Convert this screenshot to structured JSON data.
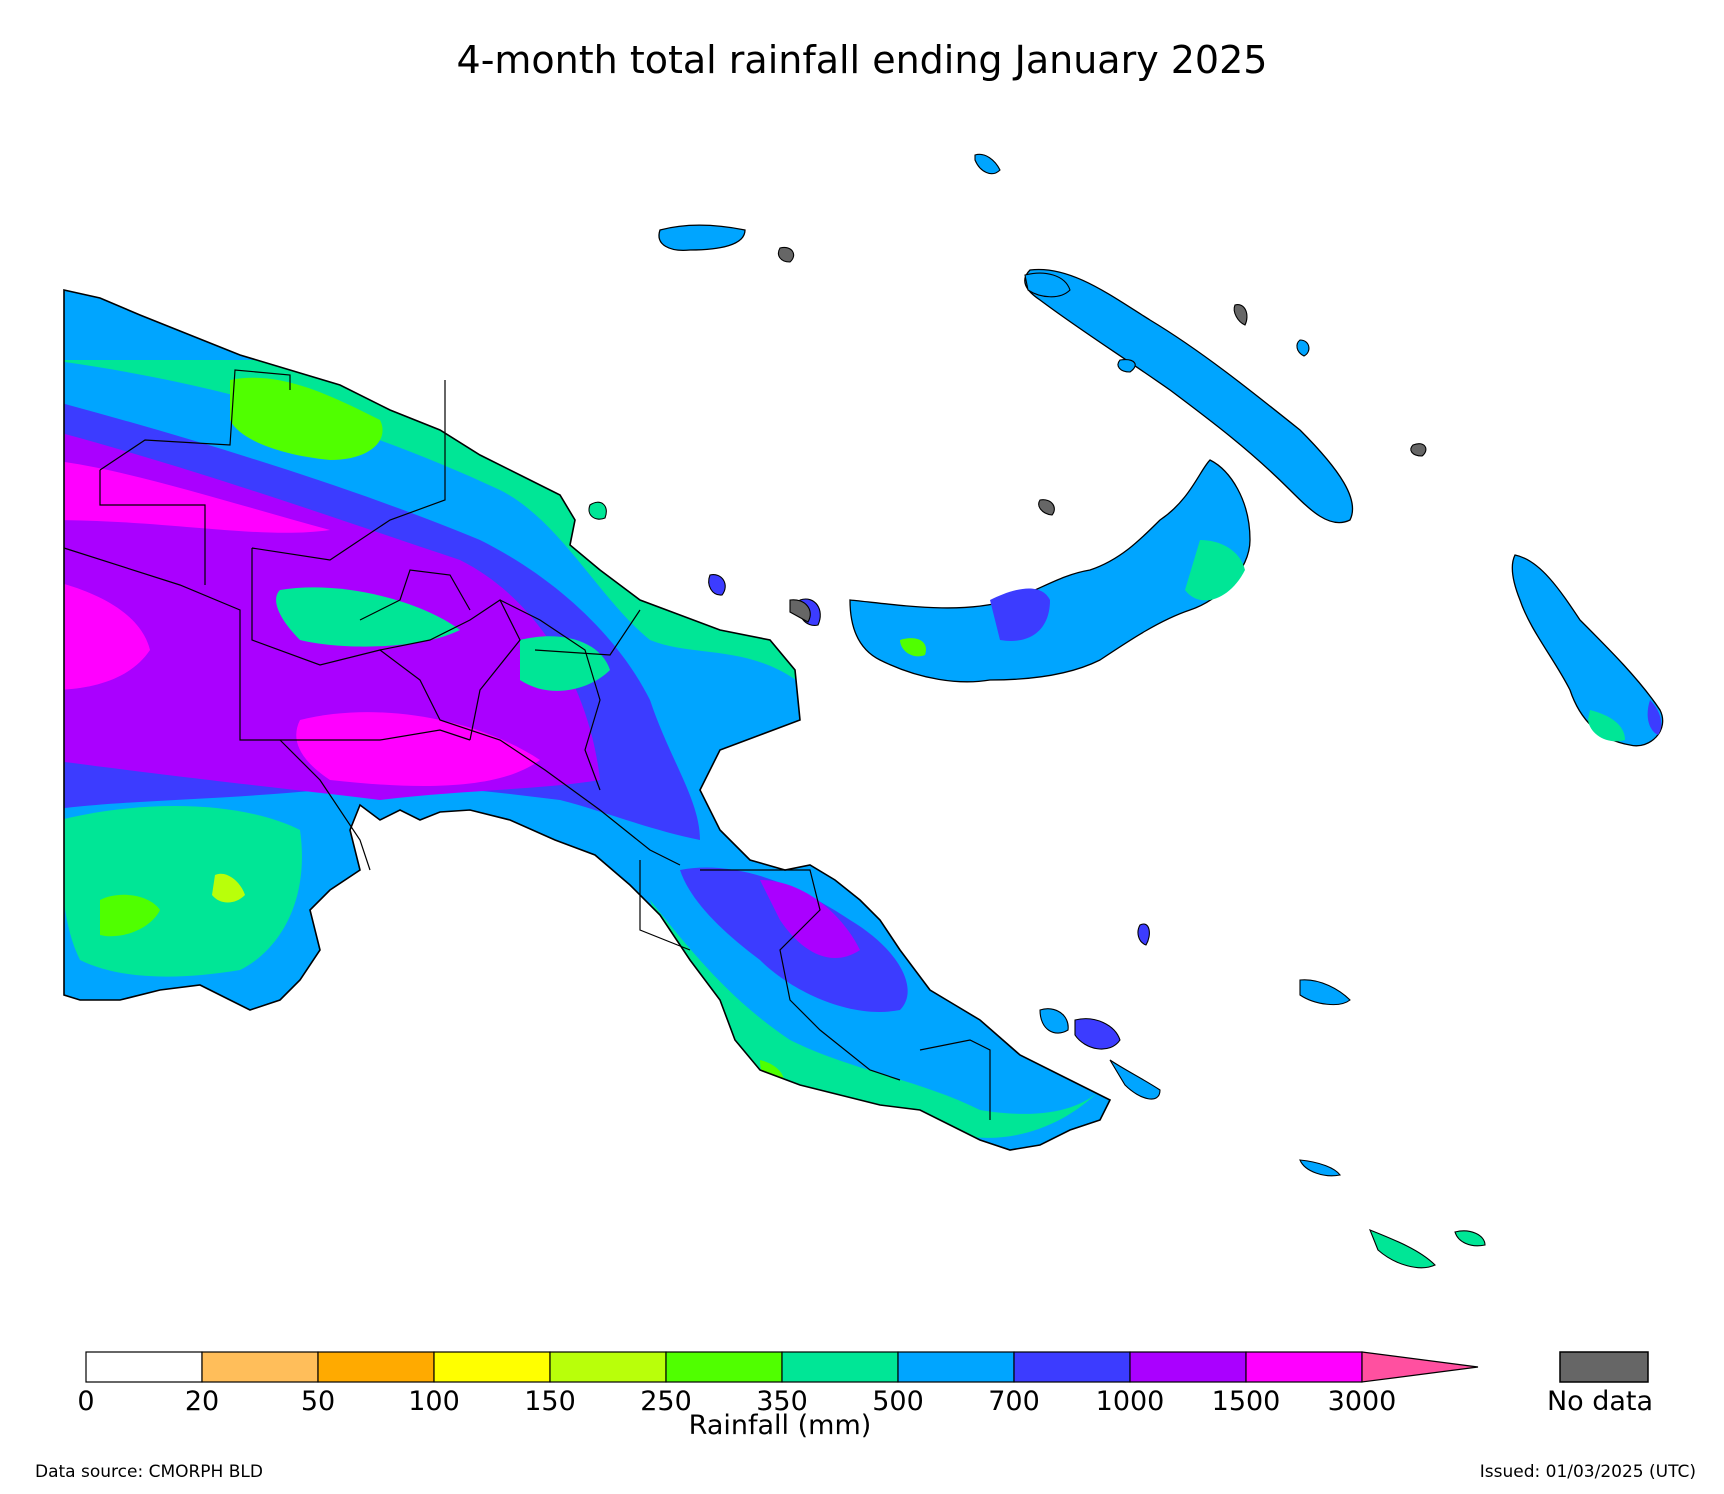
{
  "title": "4-month total rainfall ending January 2025",
  "colorbar": {
    "label": "Rainfall (mm)",
    "ticks": [
      "0",
      "20",
      "50",
      "100",
      "150",
      "250",
      "350",
      "500",
      "700",
      "1000",
      "1500",
      "3000"
    ],
    "bins": [
      {
        "range": "0-20",
        "color": "#ffffff"
      },
      {
        "range": "20-50",
        "color": "#ffbe5a"
      },
      {
        "range": "50-100",
        "color": "#ffaa00"
      },
      {
        "range": "100-150",
        "color": "#ffff00"
      },
      {
        "range": "150-250",
        "color": "#b9ff0a"
      },
      {
        "range": "250-350",
        "color": "#50ff00"
      },
      {
        "range": "350-500",
        "color": "#00e696"
      },
      {
        "range": "500-700",
        "color": "#00a5ff"
      },
      {
        "range": "700-1000",
        "color": "#3c3cff"
      },
      {
        "range": "1000-1500",
        "color": "#aa00ff"
      },
      {
        "range": "1500-3000",
        "color": "#ff00ff"
      }
    ],
    "overflow_color": "#ff50a0",
    "nodata_label": "No data",
    "nodata_color": "#666666"
  },
  "footer": {
    "source": "Data source: CMORPH BLD",
    "issued": "Issued: 01/03/2025 (UTC)"
  }
}
